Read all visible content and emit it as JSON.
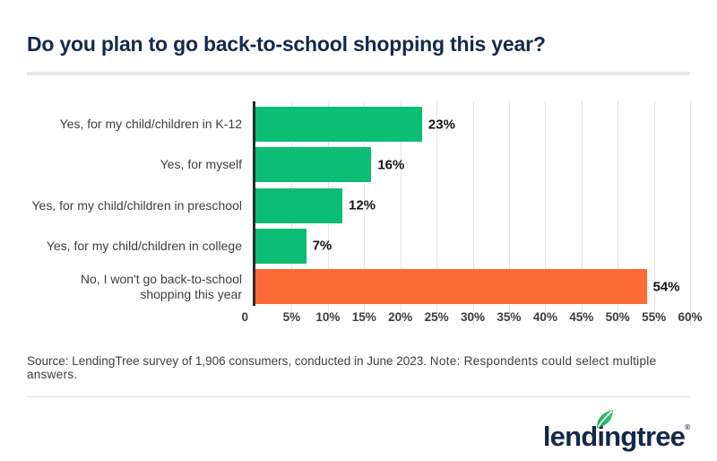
{
  "title": "Do you plan to go back-to-school shopping this year?",
  "chart_data": {
    "type": "bar",
    "orientation": "horizontal",
    "title": "Do you plan to go back-to-school shopping this year?",
    "categories": [
      "Yes, for my child/children in K-12",
      "Yes, for myself",
      "Yes, for my child/children in preschool",
      "Yes, for my child/children in college",
      "No, I won't go back-to-school shopping this year"
    ],
    "values": [
      23,
      16,
      12,
      7,
      54
    ],
    "value_labels": [
      "23%",
      "16%",
      "12%",
      "7%",
      "54%"
    ],
    "colors": [
      "#0cbd74",
      "#0cbd74",
      "#0cbd74",
      "#0cbd74",
      "#fb6a37"
    ],
    "xlabel": "",
    "ylabel": "",
    "xlim": [
      0,
      60
    ],
    "grid": true,
    "ticks": [
      {
        "label": "0",
        "value": 0
      },
      {
        "label": "5%",
        "value": 5
      },
      {
        "label": "10%",
        "value": 10
      },
      {
        "label": "15%",
        "value": 15
      },
      {
        "label": "20%",
        "value": 20
      },
      {
        "label": "25%",
        "value": 25
      },
      {
        "label": "30%",
        "value": 30
      },
      {
        "label": "35%",
        "value": 35
      },
      {
        "label": "40%",
        "value": 40
      },
      {
        "label": "45%",
        "value": 45
      },
      {
        "label": "50%",
        "value": 50
      },
      {
        "label": "55%",
        "value": 55
      },
      {
        "label": "60%",
        "value": 60
      }
    ]
  },
  "source_note": {
    "source": "Source: LendingTree survey of 1,906 consumers, conducted in June 2023.",
    "note": "Note: Respondents could select multiple answers."
  },
  "footer": {
    "logo_text": "lendingtree",
    "registered_mark": "®",
    "logo_leaf_icon": "leaf-icon"
  },
  "colors": {
    "bar_green": "#0cbd74",
    "bar_orange": "#fb6a37",
    "brand_navy": "#14294a",
    "leaf_green_dark": "#1d9e5e",
    "leaf_green_light": "#3ecb79",
    "axis_line": "#2b2b2b",
    "gridline": "#e4e4e4"
  }
}
